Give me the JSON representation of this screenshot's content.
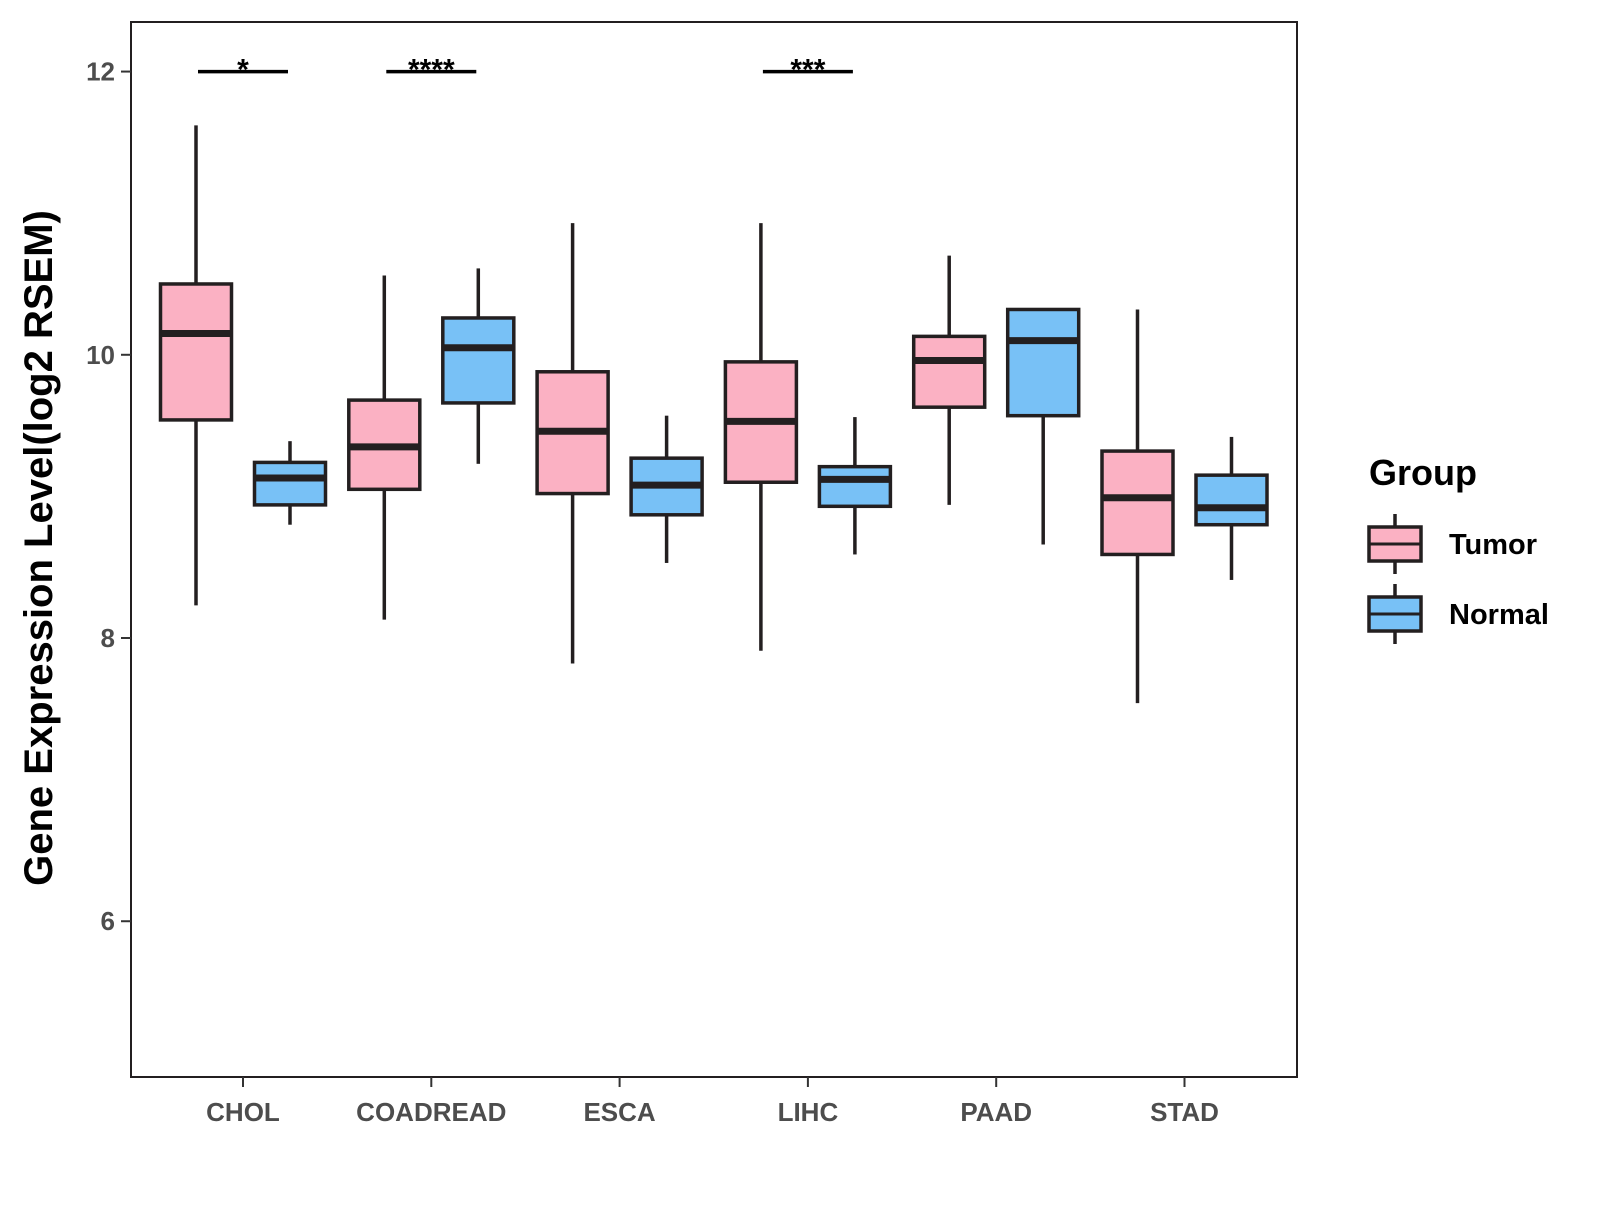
{
  "chart_data": {
    "type": "boxplot",
    "title": "",
    "xlabel": "",
    "ylabel": "Gene Expression Level(log2 RSEM)",
    "ylim": [
      4.9,
      12.35
    ],
    "yticks": [
      6,
      8,
      10,
      12
    ],
    "grid": false,
    "categories": [
      "CHOL",
      "COADREAD",
      "ESCA",
      "LIHC",
      "PAAD",
      "STAD"
    ],
    "legend": {
      "title": "Group",
      "position": "right",
      "entries": [
        "Tumor",
        "Normal"
      ]
    },
    "colors": {
      "Tumor": "#FBB1C3",
      "Normal": "#78C1F6",
      "outline": "#231F20"
    },
    "series": [
      {
        "name": "Tumor",
        "boxes": [
          {
            "category": "CHOL",
            "min": 8.23,
            "q1": 9.54,
            "median": 10.15,
            "q3": 10.5,
            "max": 11.62
          },
          {
            "category": "COADREAD",
            "min": 8.13,
            "q1": 9.05,
            "median": 9.35,
            "q3": 9.68,
            "max": 10.56
          },
          {
            "category": "ESCA",
            "min": 7.82,
            "q1": 9.02,
            "median": 9.46,
            "q3": 9.88,
            "max": 10.93
          },
          {
            "category": "LIHC",
            "min": 7.91,
            "q1": 9.1,
            "median": 9.53,
            "q3": 9.95,
            "max": 10.93
          },
          {
            "category": "PAAD",
            "min": 8.94,
            "q1": 9.63,
            "median": 9.96,
            "q3": 10.13,
            "max": 10.7
          },
          {
            "category": "STAD",
            "min": 7.54,
            "q1": 8.59,
            "median": 8.99,
            "q3": 9.32,
            "max": 10.32
          }
        ]
      },
      {
        "name": "Normal",
        "boxes": [
          {
            "category": "CHOL",
            "min": 8.8,
            "q1": 8.94,
            "median": 9.13,
            "q3": 9.24,
            "max": 9.39
          },
          {
            "category": "COADREAD",
            "min": 9.23,
            "q1": 9.66,
            "median": 10.05,
            "q3": 10.26,
            "max": 10.61
          },
          {
            "category": "ESCA",
            "min": 8.53,
            "q1": 8.87,
            "median": 9.08,
            "q3": 9.27,
            "max": 9.57
          },
          {
            "category": "LIHC",
            "min": 8.59,
            "q1": 8.93,
            "median": 9.12,
            "q3": 9.21,
            "max": 9.56
          },
          {
            "category": "PAAD",
            "min": 8.66,
            "q1": 9.57,
            "median": 10.1,
            "q3": 10.32,
            "max": 10.32
          },
          {
            "category": "STAD",
            "min": 8.41,
            "q1": 8.8,
            "median": 8.92,
            "q3": 9.15,
            "max": 9.42
          }
        ]
      }
    ],
    "significance": [
      {
        "category": "CHOL",
        "label": "*",
        "y": 12.0
      },
      {
        "category": "COADREAD",
        "label": "****",
        "y": 12.0
      },
      {
        "category": "LIHC",
        "label": "***",
        "y": 12.0
      }
    ]
  }
}
